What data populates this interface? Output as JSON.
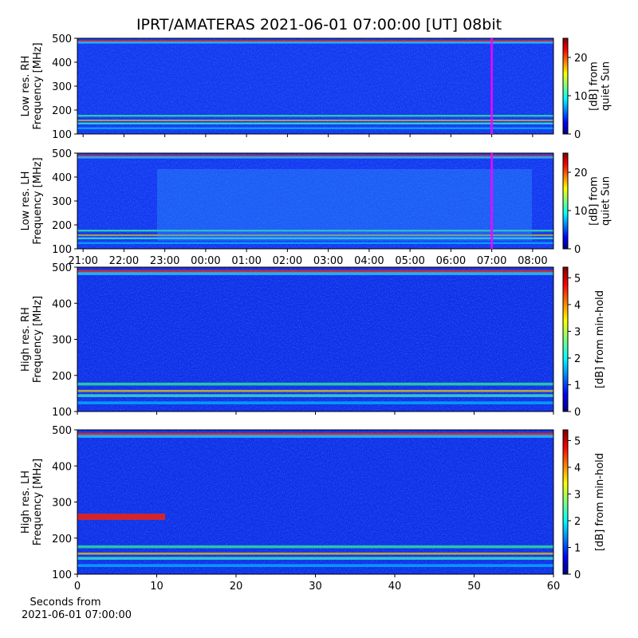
{
  "chart_data": [
    {
      "type": "spectrogram",
      "title": "IPRT/AMATERAS 2021-06-01 07:00:00 [UT]   08bit",
      "ylabel": [
        "Low res. RH",
        "Frequency [MHz]"
      ],
      "ylim": [
        100,
        500
      ],
      "yticks": [
        100,
        200,
        300,
        400,
        500
      ],
      "xlim": [
        20.86,
        32.51
      ],
      "xticks": [
        {
          "value": 21,
          "label": "21:00"
        },
        {
          "value": 22,
          "label": "22:00"
        },
        {
          "value": 23,
          "label": "23:00"
        },
        {
          "value": 24,
          "label": "00:00"
        },
        {
          "value": 25,
          "label": "01:00"
        },
        {
          "value": 26,
          "label": "02:00"
        },
        {
          "value": 27,
          "label": "03:00"
        },
        {
          "value": 28,
          "label": "04:00"
        },
        {
          "value": 29,
          "label": "05:00"
        },
        {
          "value": 30,
          "label": "06:00"
        },
        {
          "value": 31,
          "label": "07:00"
        },
        {
          "value": 32,
          "label": "08:00"
        }
      ],
      "show_xtick_labels": false,
      "marker_x": 31,
      "marker_color": "#ff00ff",
      "colorbar_label": [
        "[dB] from",
        "quiet Sun"
      ],
      "clim": [
        0,
        25
      ],
      "cticks": [
        0,
        10,
        20
      ]
    },
    {
      "type": "spectrogram",
      "ylabel": [
        "Low res. LH",
        "Frequency [MHz]"
      ],
      "ylim": [
        100,
        500
      ],
      "yticks": [
        100,
        200,
        300,
        400,
        500
      ],
      "xlim": [
        20.86,
        32.51
      ],
      "xticks": [
        {
          "value": 21,
          "label": "21:00"
        },
        {
          "value": 22,
          "label": "22:00"
        },
        {
          "value": 23,
          "label": "23:00"
        },
        {
          "value": 24,
          "label": "00:00"
        },
        {
          "value": 25,
          "label": "01:00"
        },
        {
          "value": 26,
          "label": "02:00"
        },
        {
          "value": 27,
          "label": "03:00"
        },
        {
          "value": 28,
          "label": "04:00"
        },
        {
          "value": 29,
          "label": "05:00"
        },
        {
          "value": 30,
          "label": "06:00"
        },
        {
          "value": 31,
          "label": "07:00"
        },
        {
          "value": 32,
          "label": "08:00"
        }
      ],
      "show_xtick_labels": true,
      "marker_x": 31,
      "marker_color": "#ff00ff",
      "colorbar_label": [
        "[dB] from",
        "quiet Sun"
      ],
      "clim": [
        0,
        25
      ],
      "cticks": [
        0,
        10,
        20
      ]
    },
    {
      "type": "spectrogram",
      "ylabel": [
        "High res. RH",
        "Frequency [MHz]"
      ],
      "ylim": [
        100,
        500
      ],
      "yticks": [
        100,
        200,
        300,
        400,
        500
      ],
      "xlim": [
        0,
        60
      ],
      "xticks": [
        0,
        10,
        20,
        30,
        40,
        50,
        60
      ],
      "show_xtick_labels": false,
      "colorbar_label": [
        "[dB] from min-hold"
      ],
      "clim": [
        0,
        5.4
      ],
      "cticks": [
        0,
        1,
        2,
        3,
        4,
        5
      ]
    },
    {
      "type": "spectrogram",
      "ylabel": [
        "High res. LH",
        "Frequency [MHz]"
      ],
      "ylim": [
        100,
        500
      ],
      "yticks": [
        100,
        200,
        300,
        400,
        500
      ],
      "xlim": [
        0,
        60
      ],
      "xticks": [
        0,
        10,
        20,
        30,
        40,
        50,
        60
      ],
      "show_xtick_labels": true,
      "xlabel": [
        "Seconds from",
        "2021-06-01 07:00:00"
      ],
      "colorbar_label": [
        "[dB] from min-hold"
      ],
      "clim": [
        0,
        5.4
      ],
      "cticks": [
        0,
        1,
        2,
        3,
        4,
        5
      ]
    }
  ]
}
